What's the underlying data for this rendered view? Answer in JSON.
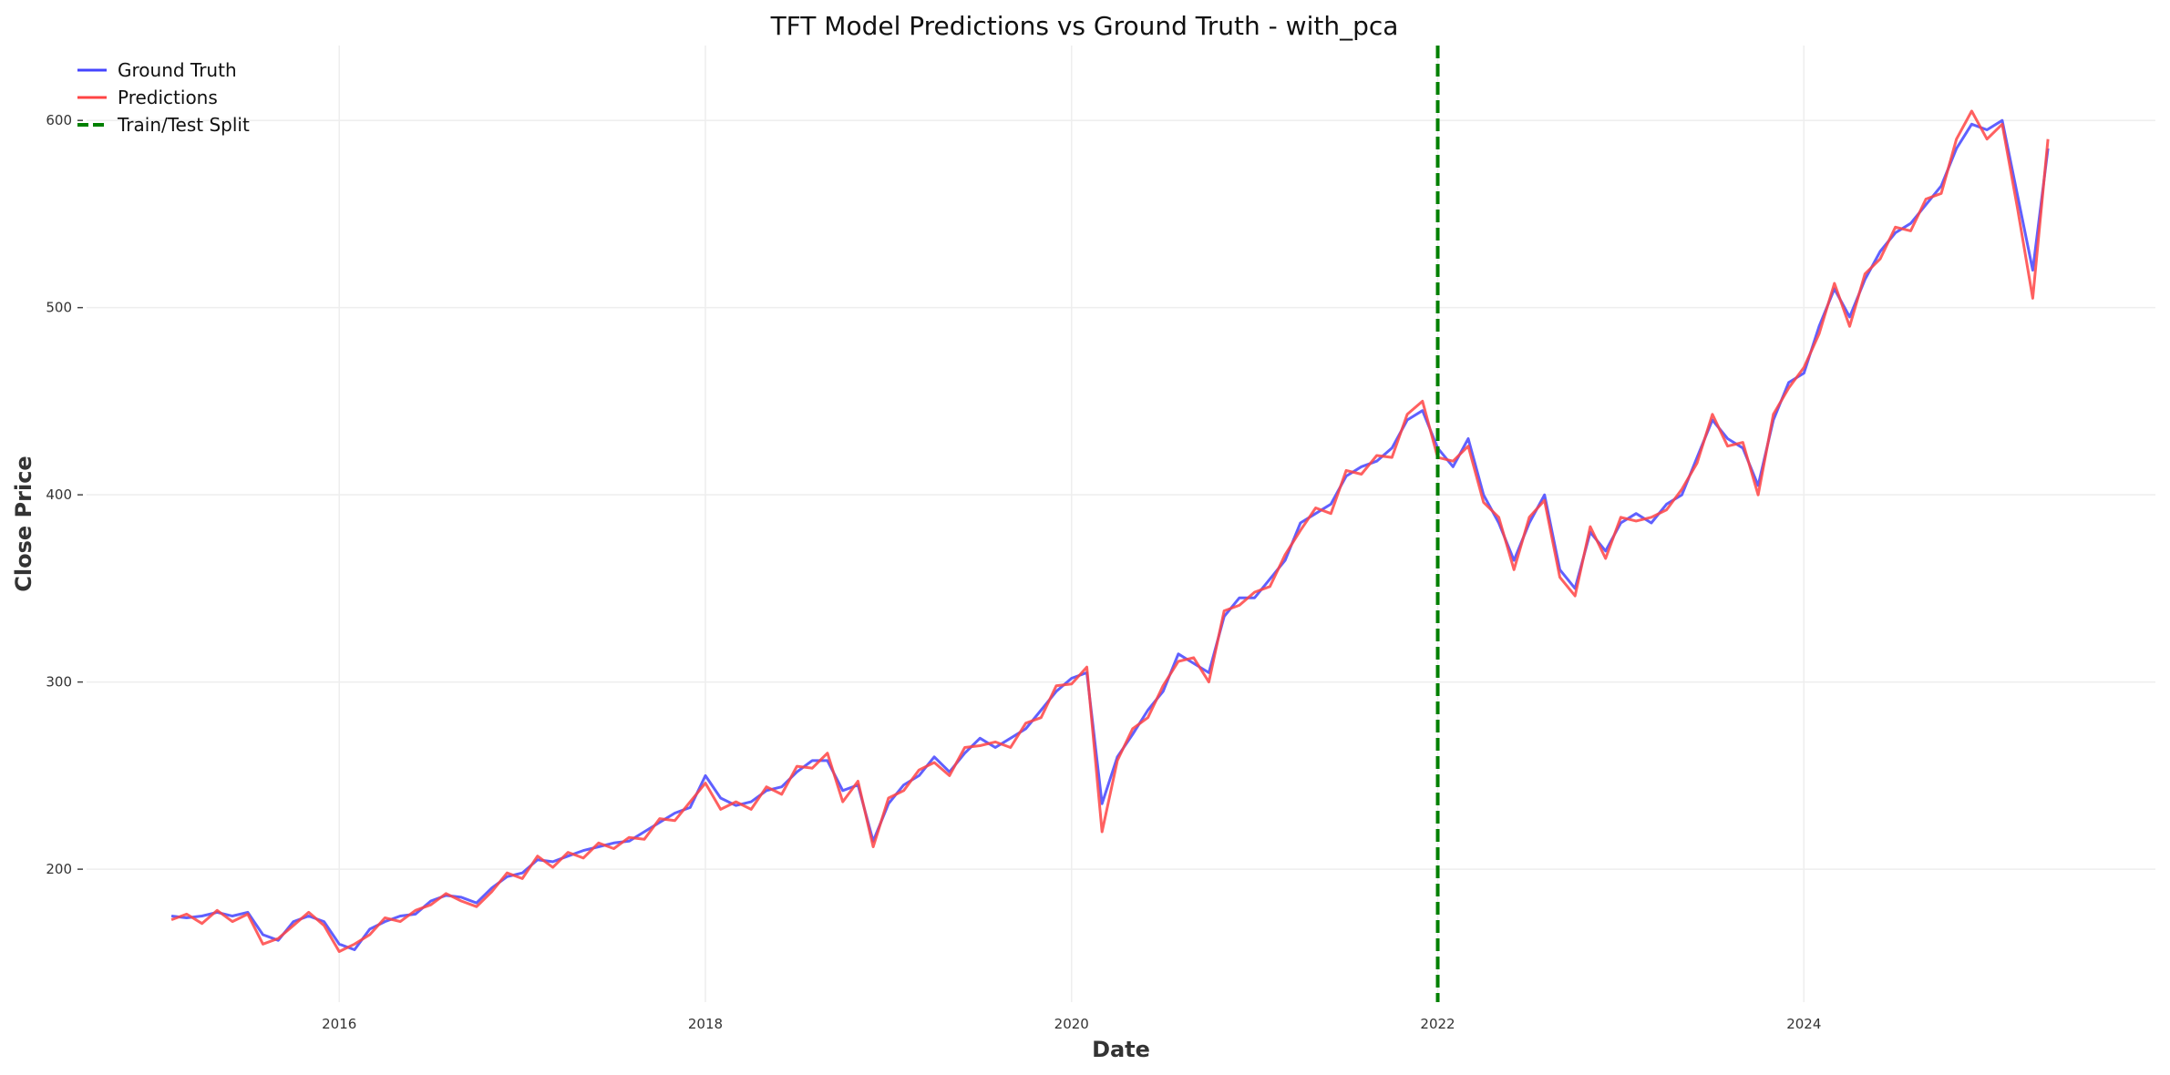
{
  "chart_data": {
    "type": "line",
    "title": "TFT Model Predictions vs Ground Truth - with_pca",
    "xlabel": "Date",
    "ylabel": "Close Price",
    "xlim": [
      2014.62,
      2025.92
    ],
    "ylim": [
      129,
      640
    ],
    "x_ticks": [
      2016,
      2018,
      2020,
      2022,
      2024
    ],
    "y_ticks": [
      200,
      300,
      400,
      500,
      600
    ],
    "grid": true,
    "legend_position": "top-left",
    "split": {
      "name": "Train/Test Split",
      "date": "2022-01",
      "color": "#008000",
      "style": "dashed"
    },
    "dates": [
      "2015-02",
      "2015-03",
      "2015-04",
      "2015-05",
      "2015-06",
      "2015-07",
      "2015-08",
      "2015-09",
      "2015-10",
      "2015-11",
      "2015-12",
      "2016-01",
      "2016-02",
      "2016-03",
      "2016-04",
      "2016-05",
      "2016-06",
      "2016-07",
      "2016-08",
      "2016-09",
      "2016-10",
      "2016-11",
      "2016-12",
      "2017-01",
      "2017-02",
      "2017-03",
      "2017-04",
      "2017-05",
      "2017-06",
      "2017-07",
      "2017-08",
      "2017-09",
      "2017-10",
      "2017-11",
      "2017-12",
      "2018-01",
      "2018-02",
      "2018-03",
      "2018-04",
      "2018-05",
      "2018-06",
      "2018-07",
      "2018-08",
      "2018-09",
      "2018-10",
      "2018-11",
      "2018-12",
      "2019-01",
      "2019-02",
      "2019-03",
      "2019-04",
      "2019-05",
      "2019-06",
      "2019-07",
      "2019-08",
      "2019-09",
      "2019-10",
      "2019-11",
      "2019-12",
      "2020-01",
      "2020-02",
      "2020-03",
      "2020-04",
      "2020-05",
      "2020-06",
      "2020-07",
      "2020-08",
      "2020-09",
      "2020-10",
      "2020-11",
      "2020-12",
      "2021-01",
      "2021-02",
      "2021-03",
      "2021-04",
      "2021-05",
      "2021-06",
      "2021-07",
      "2021-08",
      "2021-09",
      "2021-10",
      "2021-11",
      "2021-12",
      "2022-01",
      "2022-02",
      "2022-03",
      "2022-04",
      "2022-05",
      "2022-06",
      "2022-07",
      "2022-08",
      "2022-09",
      "2022-10",
      "2022-11",
      "2022-12",
      "2023-01",
      "2023-02",
      "2023-03",
      "2023-04",
      "2023-05",
      "2023-06",
      "2023-07",
      "2023-08",
      "2023-09",
      "2023-10",
      "2023-11",
      "2023-12",
      "2024-01",
      "2024-02",
      "2024-03",
      "2024-04",
      "2024-05",
      "2024-06",
      "2024-07",
      "2024-08",
      "2024-09",
      "2024-10",
      "2024-11",
      "2024-12",
      "2025-01",
      "2025-02",
      "2025-03",
      "2025-04",
      "2025-05"
    ],
    "series": [
      {
        "name": "Ground Truth",
        "color": "#4444ff",
        "values": [
          175,
          174,
          175,
          177,
          175,
          177,
          165,
          162,
          172,
          175,
          172,
          160,
          157,
          168,
          172,
          175,
          176,
          183,
          186,
          185,
          182,
          190,
          196,
          198,
          205,
          204,
          207,
          210,
          212,
          214,
          215,
          220,
          225,
          230,
          233,
          250,
          238,
          234,
          236,
          242,
          244,
          252,
          258,
          258,
          242,
          245,
          215,
          235,
          245,
          250,
          260,
          252,
          262,
          270,
          265,
          270,
          275,
          285,
          295,
          302,
          305,
          235,
          260,
          272,
          285,
          295,
          315,
          310,
          305,
          335,
          345,
          345,
          355,
          365,
          385,
          390,
          395,
          410,
          415,
          418,
          425,
          440,
          445,
          425,
          415,
          430,
          400,
          385,
          365,
          385,
          400,
          360,
          350,
          380,
          370,
          385,
          390,
          385,
          395,
          400,
          420,
          440,
          430,
          425,
          405,
          440,
          460,
          465,
          490,
          510,
          495,
          515,
          530,
          540,
          545,
          555,
          565,
          585,
          598,
          595,
          600,
          560,
          520,
          585
        ]
      },
      {
        "name": "Predictions",
        "color": "#ff4444",
        "values": [
          173,
          176,
          171,
          178,
          172,
          176,
          160,
          163,
          170,
          177,
          170,
          156,
          160,
          165,
          174,
          172,
          178,
          181,
          187,
          183,
          180,
          188,
          198,
          195,
          207,
          201,
          209,
          206,
          214,
          211,
          217,
          216,
          227,
          226,
          236,
          246,
          232,
          236,
          232,
          244,
          240,
          255,
          254,
          262,
          236,
          247,
          212,
          238,
          242,
          253,
          257,
          250,
          265,
          266,
          268,
          265,
          278,
          281,
          298,
          299,
          308,
          220,
          258,
          275,
          281,
          298,
          311,
          313,
          300,
          338,
          341,
          348,
          351,
          368,
          381,
          393,
          390,
          413,
          411,
          421,
          420,
          443,
          450,
          420,
          418,
          426,
          396,
          388,
          360,
          388,
          397,
          356,
          346,
          383,
          366,
          388,
          386,
          388,
          392,
          403,
          417,
          443,
          426,
          428,
          400,
          443,
          457,
          468,
          486,
          513,
          490,
          518,
          526,
          543,
          541,
          558,
          561,
          590,
          605,
          590,
          598,
          553,
          505,
          590
        ]
      }
    ]
  }
}
